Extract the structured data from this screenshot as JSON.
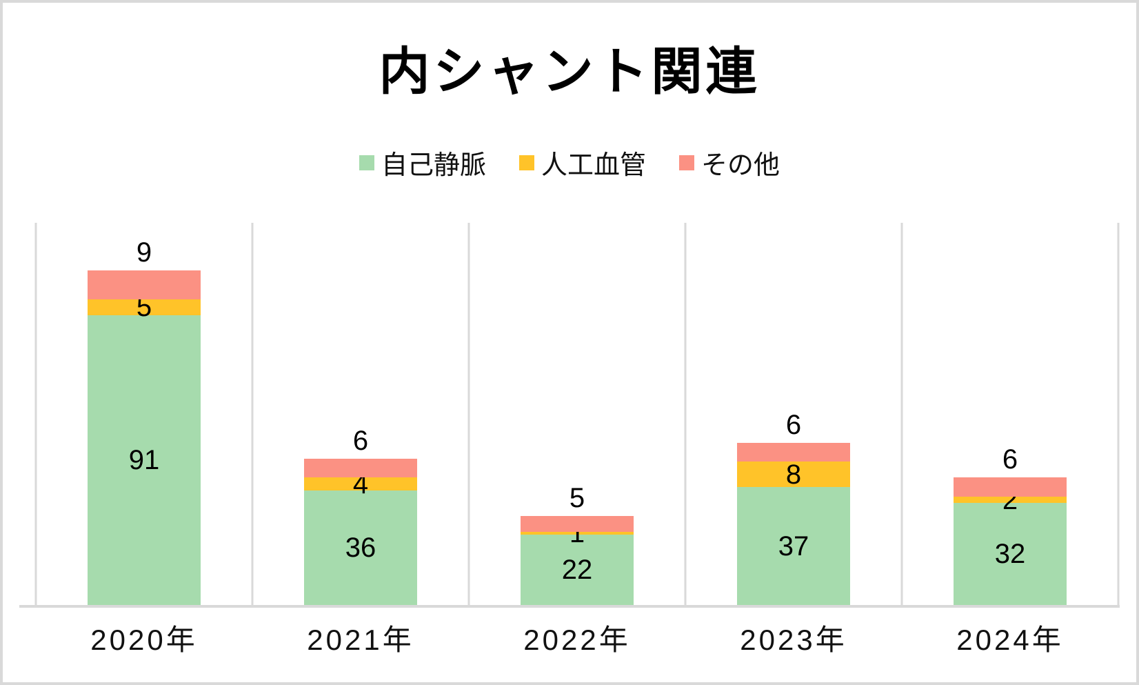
{
  "title": "内シャント関連",
  "chart_data": {
    "type": "bar",
    "stacked": true,
    "title": "内シャント関連",
    "categories": [
      "2020年",
      "2021年",
      "2022年",
      "2023年",
      "2024年"
    ],
    "series": [
      {
        "key": "autologous-vein",
        "name": "自己静脈",
        "color": "#A6DBAD",
        "label_position": "inside",
        "values": [
          91,
          36,
          22,
          37,
          32
        ]
      },
      {
        "key": "prosthetic-graft",
        "name": "人工血管",
        "color": "#FFC329",
        "label_position": "inside",
        "values": [
          5,
          4,
          1,
          8,
          2
        ]
      },
      {
        "key": "other",
        "name": "その他",
        "color": "#FB9183",
        "label_position": "outside-top",
        "values": [
          9,
          6,
          5,
          6,
          6
        ]
      }
    ],
    "totals": [
      105,
      46,
      28,
      51,
      40
    ],
    "ylim": [
      0,
      120
    ],
    "xlabel": "",
    "ylabel": "",
    "legend_position": "top-center",
    "grid": "vertical-category-separators",
    "gridline_color": "#D9D9D9",
    "axis_color": "#D9D9D9",
    "label_color": "#000000",
    "background": "#FFFFFF",
    "border_color": "#D9D9D9"
  }
}
